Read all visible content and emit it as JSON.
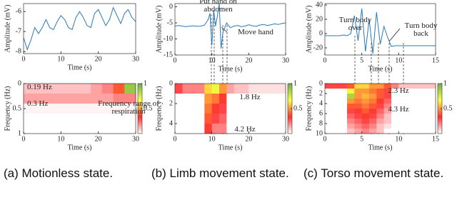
{
  "chart_data": [
    {
      "type": "line",
      "xlabel": "Time (s)",
      "ylabel": "Amplitude (mV)",
      "color": "#2a78b8",
      "x": [
        0,
        1,
        2,
        3,
        4,
        5,
        6,
        7,
        8,
        9,
        10,
        11,
        12,
        13,
        14,
        15,
        16,
        17,
        18,
        19,
        20,
        21,
        22,
        23,
        24,
        25,
        26,
        27,
        28,
        29,
        30
      ],
      "values": [
        -7.3,
        -7.9,
        -7.4,
        -6.8,
        -7.1,
        -6.8,
        -6.4,
        -6.8,
        -6.9,
        -6.5,
        -6.2,
        -6.4,
        -6.8,
        -6.9,
        -6.3,
        -6.0,
        -6.3,
        -6.7,
        -6.8,
        -6.1,
        -5.9,
        -6.3,
        -6.7,
        -6.4,
        -5.8,
        -6.2,
        -6.6,
        -6.1,
        -5.9,
        -6.3,
        -6.5
      ],
      "xlim": [
        0,
        30
      ],
      "xticks": [
        0,
        10,
        20,
        30
      ],
      "ylim": [
        -8.1,
        -5.6
      ],
      "yticks": [
        -8,
        -7,
        -6
      ],
      "annotations": []
    },
    {
      "type": "line",
      "xlabel": "Time (s)",
      "ylabel": "Amplitude (mV)",
      "color": "#2a78b8",
      "x": [
        0,
        1,
        2,
        3,
        4,
        5,
        6,
        7,
        8,
        9,
        9.5,
        10,
        10.5,
        11,
        11.5,
        12,
        12.5,
        13,
        14,
        15,
        16,
        17,
        18,
        19,
        20,
        21,
        22,
        23,
        24,
        25,
        26,
        27,
        28,
        29,
        30
      ],
      "values": [
        -6,
        -5.8,
        -6,
        -6.2,
        -6,
        -5.9,
        -6.1,
        -6,
        -5.7,
        -4,
        -2,
        -12,
        -1,
        -6,
        -3,
        1,
        -13,
        -8,
        -5,
        -6.5,
        -6,
        -5.8,
        -6.2,
        -6,
        -5.6,
        -5.9,
        -6.1,
        -5.7,
        -5.5,
        -5.8,
        -5.6,
        -5.3,
        -5.5,
        -5.2,
        -5
      ],
      "xlim": [
        0,
        30
      ],
      "xticks": [
        0,
        10,
        20,
        30
      ],
      "ylim": [
        -15,
        1
      ],
      "yticks": [
        -15,
        -10,
        -5,
        0
      ],
      "annotations": [
        "Put hand on abdomen",
        "Move hand"
      ]
    },
    {
      "type": "line",
      "xlabel": "Time (s)",
      "ylabel": "Amplitude (mV)",
      "color": "#2a78b8",
      "x": [
        0,
        0.5,
        1,
        1.5,
        2,
        2.5,
        3,
        3.5,
        4,
        4.5,
        5,
        5.5,
        6,
        6.5,
        7,
        7.5,
        8,
        8.5,
        9,
        9.5,
        10,
        10.5,
        11,
        11.5,
        12,
        12.5,
        13,
        13.5,
        14,
        14.5,
        15
      ],
      "values": [
        -3,
        -3,
        -3,
        -3,
        -3,
        -2,
        -3,
        0,
        25,
        -10,
        35,
        -25,
        20,
        -28,
        30,
        -15,
        10,
        -5,
        -18,
        -17,
        -17,
        -17,
        -17,
        -17,
        -17,
        -17,
        -17,
        -17,
        -17,
        -17,
        -17
      ],
      "xlim": [
        0,
        15
      ],
      "xticks": [
        0,
        5,
        10,
        15
      ],
      "ylim": [
        -30,
        42
      ],
      "yticks": [
        -20,
        0,
        20,
        40
      ],
      "annotations": [
        "Turn body over",
        "Turn body back"
      ]
    },
    {
      "type": "heatmap",
      "xlabel": "Time (s)",
      "ylabel": "Frequency (Hz)",
      "y_reversed": true,
      "colormap": [
        "#ffffff",
        "#ff3030",
        "#ffff40",
        "#6ab04c"
      ],
      "clim": [
        0,
        1
      ],
      "cticks": [
        0.5,
        1
      ],
      "xbins": [
        0,
        3,
        6,
        9,
        12,
        15,
        18,
        21,
        24,
        27,
        30
      ],
      "ybins": [
        0,
        0.2,
        0.4,
        0.6,
        0.8,
        1
      ],
      "z": [
        [
          0.1,
          0.1,
          0.1,
          0.1,
          0.1,
          0.1,
          0.15,
          0.2,
          0.4,
          0.9
        ],
        [
          0.15,
          0.15,
          0.15,
          0.15,
          0.15,
          0.15,
          0.15,
          0.15,
          0.2,
          0.2
        ],
        [
          0.02,
          0.02,
          0.02,
          0.02,
          0.02,
          0.02,
          0.02,
          0.02,
          0.02,
          0.02
        ],
        [
          0,
          0,
          0,
          0,
          0,
          0,
          0,
          0,
          0,
          0
        ],
        [
          0,
          0,
          0,
          0,
          0,
          0,
          0,
          0,
          0,
          0
        ]
      ],
      "xlim": [
        0,
        30
      ],
      "xticks": [
        0,
        10,
        20,
        30
      ],
      "ylim": [
        0,
        1
      ],
      "yticks": [
        0,
        0.5,
        1
      ],
      "annotations": [
        "0.19 Hz",
        "0.3 Hz",
        "Frequency range of respiration"
      ]
    },
    {
      "type": "heatmap",
      "xlabel": "Time (s)",
      "ylabel": "Frequency (Hz)",
      "y_reversed": true,
      "colormap": [
        "#ffffff",
        "#ff3030",
        "#ffff40",
        "#6ab04c"
      ],
      "clim": [
        0,
        1
      ],
      "cticks": [
        0.5,
        1
      ],
      "xbins": [
        0,
        2,
        4,
        6,
        8,
        10,
        12,
        14,
        16,
        18,
        20,
        22,
        24,
        26,
        28,
        30
      ],
      "ybins": [
        0,
        1,
        2,
        3,
        4,
        5
      ],
      "z": [
        [
          0.3,
          0.2,
          0.2,
          0.2,
          0.6,
          0.7,
          0.5,
          0.15,
          0.1,
          0.1,
          0.05,
          0.05,
          0.05,
          0.05,
          0.05
        ],
        [
          0,
          0,
          0,
          0,
          0.5,
          0.45,
          0.35,
          0,
          0,
          0,
          0,
          0,
          0,
          0,
          0
        ],
        [
          0,
          0,
          0,
          0,
          0.45,
          0.35,
          0.3,
          0,
          0,
          0,
          0,
          0,
          0,
          0,
          0
        ],
        [
          0,
          0,
          0,
          0,
          0.4,
          0.3,
          0.25,
          0,
          0,
          0,
          0,
          0,
          0,
          0,
          0
        ],
        [
          0,
          0,
          0,
          0,
          0.35,
          0.2,
          0.2,
          0,
          0,
          0,
          0,
          0,
          0,
          0,
          0
        ]
      ],
      "xlim": [
        0,
        30
      ],
      "xticks": [
        0,
        10,
        20,
        30
      ],
      "ylim": [
        0,
        5
      ],
      "yticks": [
        0,
        2,
        4
      ],
      "annotations": [
        "1.8 Hz",
        "4.2 Hz"
      ]
    },
    {
      "type": "heatmap",
      "xlabel": "Time (s)",
      "ylabel": "Frequency (Hz)",
      "y_reversed": true,
      "colormap": [
        "#ffffff",
        "#ff3030",
        "#ffff40",
        "#6ab04c"
      ],
      "clim": [
        0,
        1
      ],
      "cticks": [
        0.5,
        1
      ],
      "xbins": [
        0,
        1,
        2,
        3,
        4,
        5,
        6,
        7,
        8,
        9,
        10,
        11,
        12,
        13,
        14,
        15
      ],
      "ybins": [
        0,
        1,
        2,
        3,
        4,
        5,
        6,
        7,
        8,
        9,
        10
      ],
      "z": [
        [
          0.3,
          0.3,
          0.3,
          0.4,
          0.6,
          0.6,
          0.5,
          0.5,
          0.4,
          0.2,
          0.1,
          0.1,
          0.1,
          0.1,
          0.1
        ],
        [
          0,
          0,
          0,
          0.7,
          0.5,
          0.5,
          0.45,
          0.4,
          0.3,
          0,
          0,
          0,
          0,
          0,
          0
        ],
        [
          0,
          0,
          0,
          0.85,
          0.5,
          0.55,
          0.5,
          0.4,
          0.3,
          0,
          0,
          0,
          0,
          0,
          0
        ],
        [
          0,
          0,
          0,
          0.5,
          0.45,
          0.5,
          0.45,
          0.35,
          0.25,
          0,
          0,
          0,
          0,
          0,
          0
        ],
        [
          0,
          0,
          0,
          0.4,
          0.4,
          0.45,
          0.4,
          0.3,
          0.2,
          0,
          0,
          0,
          0,
          0,
          0
        ],
        [
          0,
          0,
          0,
          0.3,
          0.35,
          0.4,
          0.35,
          0.25,
          0.15,
          0,
          0,
          0,
          0,
          0,
          0
        ],
        [
          0,
          0,
          0,
          0.25,
          0.3,
          0.35,
          0.3,
          0.2,
          0.1,
          0,
          0,
          0,
          0,
          0,
          0
        ],
        [
          0,
          0,
          0,
          0.2,
          0.25,
          0.3,
          0.25,
          0.15,
          0.1,
          0,
          0,
          0,
          0,
          0,
          0
        ],
        [
          0,
          0,
          0,
          0.15,
          0.2,
          0.25,
          0.2,
          0.1,
          0.05,
          0,
          0,
          0,
          0,
          0,
          0
        ],
        [
          0,
          0,
          0,
          0.1,
          0.15,
          0.2,
          0.15,
          0.1,
          0,
          0,
          0,
          0,
          0,
          0,
          0
        ]
      ],
      "xlim": [
        0,
        15
      ],
      "xticks": [
        0,
        5,
        10,
        15
      ],
      "ylim": [
        0,
        10
      ],
      "yticks": [
        0,
        2,
        4,
        6,
        8,
        10
      ],
      "annotations": [
        "2.3 Hz",
        "4.3 Hz"
      ]
    }
  ],
  "captions": [
    "(a) Motionless state.",
    "(b) Limb movement state.",
    "(c) Torso movement state."
  ]
}
